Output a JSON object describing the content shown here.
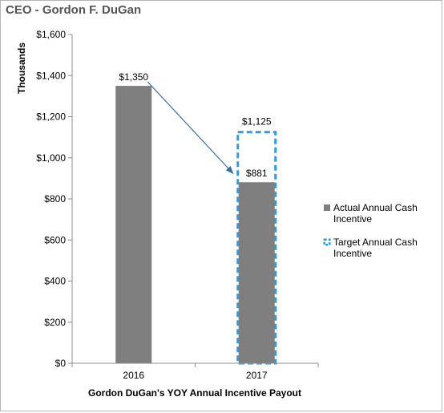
{
  "header": {
    "title": "CEO - Gordon F. DuGan"
  },
  "chart_data": {
    "type": "bar",
    "title": "",
    "xlabel": "Gordon DuGan's YOY Annual Incentive Payout",
    "ylabel": "Thousands",
    "categories": [
      "2016",
      "2017"
    ],
    "ylim": [
      0,
      1600
    ],
    "yticks": [
      0,
      200,
      400,
      600,
      800,
      1000,
      1200,
      1400,
      1600
    ],
    "ytick_labels": [
      "$0",
      "$200",
      "$400",
      "$600",
      "$800",
      "$1,000",
      "$1,200",
      "$1,400",
      "$1,600"
    ],
    "grid": false,
    "legend_position": "right",
    "series": [
      {
        "name": "Actual Annual Cash Incentive",
        "values": [
          1350,
          881
        ],
        "labels": [
          "$1,350",
          "$881"
        ],
        "color": "#7f7f7f",
        "style": "solid"
      },
      {
        "name": "Target Annual Cash Incentive",
        "values": [
          null,
          1125
        ],
        "labels": [
          "",
          "$1,125"
        ],
        "color": "#2e9ae6",
        "style": "dashed-outline"
      }
    ],
    "annotations": [
      {
        "type": "arrow",
        "from_category": "2016",
        "to_category": "2017",
        "color": "#3a6ea8"
      }
    ]
  }
}
